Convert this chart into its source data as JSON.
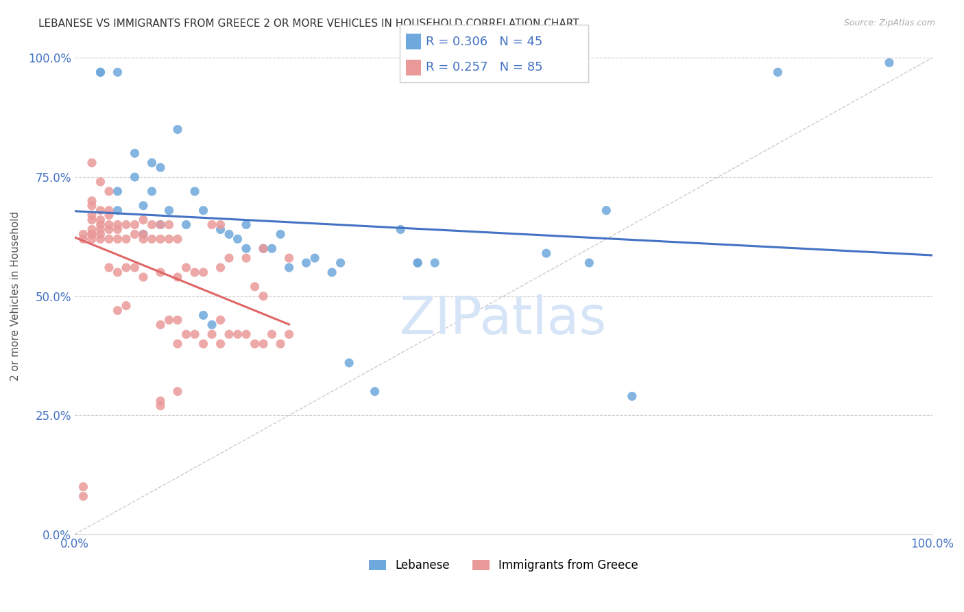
{
  "title": "LEBANESE VS IMMIGRANTS FROM GREECE 2 OR MORE VEHICLES IN HOUSEHOLD CORRELATION CHART",
  "source": "Source: ZipAtlas.com",
  "ylabel": "2 or more Vehicles in Household",
  "ytick_labels": [
    "0.0%",
    "25.0%",
    "50.0%",
    "75.0%",
    "100.0%"
  ],
  "ytick_values": [
    0.0,
    0.25,
    0.5,
    0.75,
    1.0
  ],
  "xlim": [
    0.0,
    1.0
  ],
  "ylim": [
    0.0,
    1.0
  ],
  "legend_label_1": "Lebanese",
  "legend_label_2": "Immigrants from Greece",
  "R_blue": 0.306,
  "N_blue": 45,
  "R_pink": 0.257,
  "N_pink": 85,
  "color_blue": "#6fa8dc",
  "color_pink": "#ea9999",
  "color_trend_blue": "#4472c4",
  "color_trend_pink": "#e06666",
  "color_text_blue": "#4472c4",
  "color_grid": "#cccccc",
  "color_watermark": "#d6e4f7",
  "watermark_text": "ZIPatlas",
  "blue_x": [
    0.03,
    0.03,
    0.05,
    0.05,
    0.05,
    0.07,
    0.07,
    0.08,
    0.08,
    0.09,
    0.09,
    0.1,
    0.1,
    0.11,
    0.12,
    0.13,
    0.14,
    0.15,
    0.15,
    0.16,
    0.17,
    0.18,
    0.19,
    0.2,
    0.2,
    0.22,
    0.23,
    0.24,
    0.25,
    0.27,
    0.28,
    0.3,
    0.31,
    0.32,
    0.35,
    0.38,
    0.4,
    0.4,
    0.42,
    0.55,
    0.6,
    0.62,
    0.65,
    0.82,
    0.95
  ],
  "blue_y": [
    0.97,
    0.97,
    0.97,
    0.72,
    0.68,
    0.8,
    0.75,
    0.69,
    0.63,
    0.78,
    0.72,
    0.77,
    0.65,
    0.68,
    0.85,
    0.65,
    0.72,
    0.68,
    0.46,
    0.44,
    0.64,
    0.63,
    0.62,
    0.65,
    0.6,
    0.6,
    0.6,
    0.63,
    0.56,
    0.57,
    0.58,
    0.55,
    0.57,
    0.36,
    0.3,
    0.64,
    0.57,
    0.57,
    0.57,
    0.59,
    0.57,
    0.68,
    0.29,
    0.97,
    0.99
  ],
  "pink_x": [
    0.01,
    0.01,
    0.01,
    0.01,
    0.02,
    0.02,
    0.02,
    0.02,
    0.02,
    0.02,
    0.02,
    0.02,
    0.02,
    0.03,
    0.03,
    0.03,
    0.03,
    0.03,
    0.03,
    0.03,
    0.04,
    0.04,
    0.04,
    0.04,
    0.04,
    0.04,
    0.04,
    0.05,
    0.05,
    0.05,
    0.05,
    0.05,
    0.06,
    0.06,
    0.06,
    0.06,
    0.07,
    0.07,
    0.07,
    0.08,
    0.08,
    0.08,
    0.08,
    0.09,
    0.09,
    0.1,
    0.1,
    0.1,
    0.1,
    0.11,
    0.11,
    0.11,
    0.12,
    0.12,
    0.12,
    0.12,
    0.13,
    0.13,
    0.14,
    0.14,
    0.15,
    0.15,
    0.16,
    0.16,
    0.17,
    0.17,
    0.17,
    0.17,
    0.18,
    0.18,
    0.19,
    0.2,
    0.2,
    0.21,
    0.21,
    0.22,
    0.22,
    0.22,
    0.23,
    0.24,
    0.25,
    0.25,
    0.1,
    0.1,
    0.12
  ],
  "pink_y": [
    0.08,
    0.1,
    0.62,
    0.63,
    0.62,
    0.63,
    0.63,
    0.64,
    0.66,
    0.67,
    0.69,
    0.7,
    0.78,
    0.62,
    0.63,
    0.64,
    0.65,
    0.66,
    0.68,
    0.74,
    0.56,
    0.62,
    0.64,
    0.65,
    0.67,
    0.68,
    0.72,
    0.47,
    0.55,
    0.62,
    0.64,
    0.65,
    0.48,
    0.56,
    0.62,
    0.65,
    0.56,
    0.63,
    0.65,
    0.54,
    0.62,
    0.63,
    0.66,
    0.62,
    0.65,
    0.44,
    0.55,
    0.62,
    0.65,
    0.45,
    0.62,
    0.65,
    0.4,
    0.45,
    0.54,
    0.62,
    0.42,
    0.56,
    0.42,
    0.55,
    0.4,
    0.55,
    0.42,
    0.65,
    0.4,
    0.45,
    0.56,
    0.65,
    0.42,
    0.58,
    0.42,
    0.42,
    0.58,
    0.4,
    0.52,
    0.4,
    0.5,
    0.6,
    0.42,
    0.4,
    0.42,
    0.58,
    0.27,
    0.28,
    0.3
  ]
}
